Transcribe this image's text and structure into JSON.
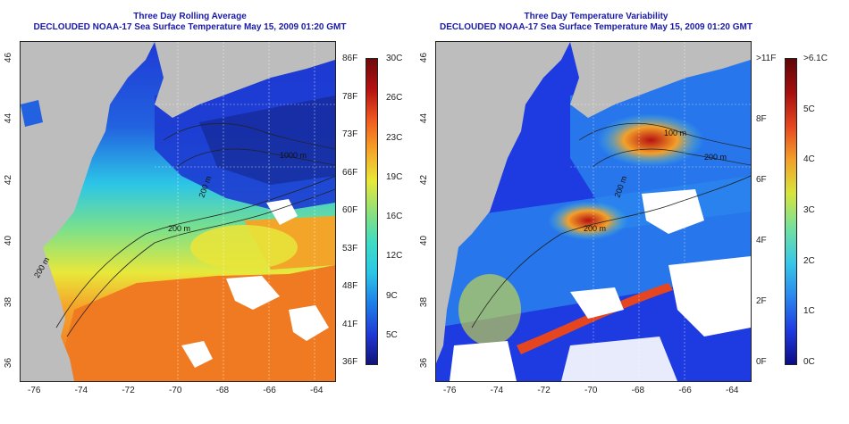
{
  "left_panel": {
    "title_line1": "Three Day Rolling Average",
    "title_line2": "DECLOUDED NOAA-17 Sea Surface Temperature May 15, 2009 01:20 GMT",
    "contour_labels": [
      "200 m",
      "200 m",
      "200 m",
      "1000 m"
    ],
    "colorbar_f": [
      "86F",
      "78F",
      "73F",
      "66F",
      "60F",
      "53F",
      "48F",
      "41F",
      "36F"
    ],
    "colorbar_c": [
      "30C",
      "26C",
      "23C",
      "19C",
      "16C",
      "12C",
      "9C",
      "5C"
    ]
  },
  "right_panel": {
    "title_line1": "Three Day Temperature Variability",
    "title_line2": "DECLOUDED NOAA-17 Sea Surface Temperature May 15, 2009 01:20 GMT",
    "contour_labels": [
      "200 m",
      "200 m",
      "100 m",
      "200 m"
    ],
    "colorbar_f": [
      ">11F",
      "8F",
      "6F",
      "4F",
      "2F",
      "0F"
    ],
    "colorbar_c": [
      ">6.1C",
      "5C",
      "4C",
      "3C",
      "2C",
      "1C",
      "0C"
    ]
  },
  "x_ticks": [
    "-76",
    "-74",
    "-72",
    "-70",
    "-68",
    "-66",
    "-64"
  ],
  "y_ticks": [
    "36",
    "38",
    "40",
    "42",
    "44",
    "46"
  ],
  "colors": {
    "land": "#bdbdbd",
    "title": "#1a1aa8",
    "sst_scale": [
      "#12127a",
      "#1f3bd6",
      "#1e7fe8",
      "#2cc6e6",
      "#3fdcc4",
      "#8fe079",
      "#e8e83a",
      "#f5a52a",
      "#ef5a1e",
      "#b51111",
      "#6e0a0a"
    ],
    "var_scale": [
      "#0c0c84",
      "#1d3be0",
      "#2a86ee",
      "#37c7e9",
      "#6fe0a3",
      "#d8e53a",
      "#f3a029",
      "#e6461f",
      "#a60e0e",
      "#5e0606"
    ]
  }
}
